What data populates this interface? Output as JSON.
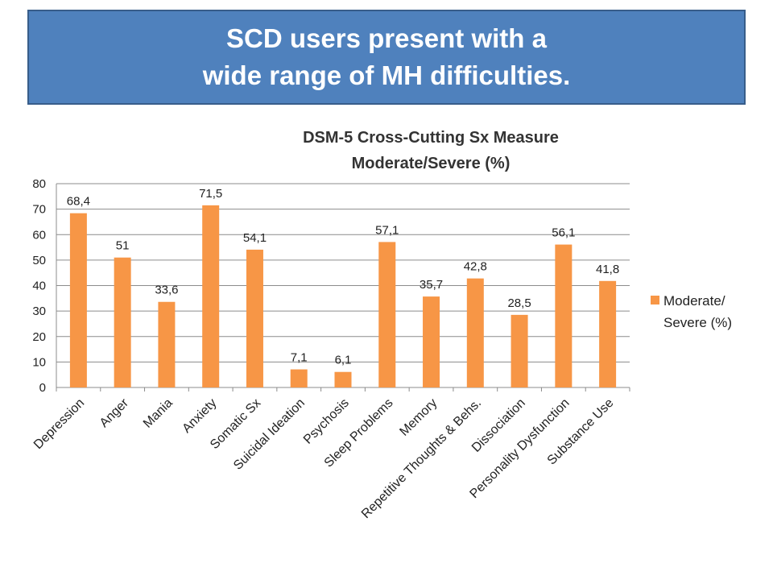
{
  "banner": {
    "line1": "SCD users present with a",
    "line2": "wide range of MH difficulties."
  },
  "colors": {
    "banner_bg": "#4f81bd",
    "bar": "#f79646"
  },
  "chart_data": {
    "type": "bar",
    "title": [
      "DSM-5 Cross-Cutting Sx Measure",
      "Moderate/Severe (%)"
    ],
    "categories": [
      "Depression",
      "Anger",
      "Mania",
      "Anxiety",
      "Somatic Sx",
      "Suicidal Ideation",
      "Psychosis",
      "Sleep Problems",
      "Memory",
      "Repetitive Thoughts & Behs.",
      "Dissociation",
      "Personality Dysfunction",
      "Substance Use"
    ],
    "series": [
      {
        "name": [
          "Moderate/",
          "Severe (%)"
        ],
        "values": [
          68.4,
          51,
          33.6,
          71.5,
          54.1,
          7.1,
          6.1,
          57.1,
          35.7,
          42.8,
          28.5,
          56.1,
          41.8
        ],
        "labels": [
          "68,4",
          "51",
          "33,6",
          "71,5",
          "54,1",
          "7,1",
          "6,1",
          "57,1",
          "35,7",
          "42,8",
          "28,5",
          "56,1",
          "41,8"
        ]
      }
    ],
    "ylim": [
      0,
      80
    ],
    "yticks": [
      0,
      10,
      20,
      30,
      40,
      50,
      60,
      70,
      80
    ],
    "grid": true,
    "legend_position": "right"
  }
}
